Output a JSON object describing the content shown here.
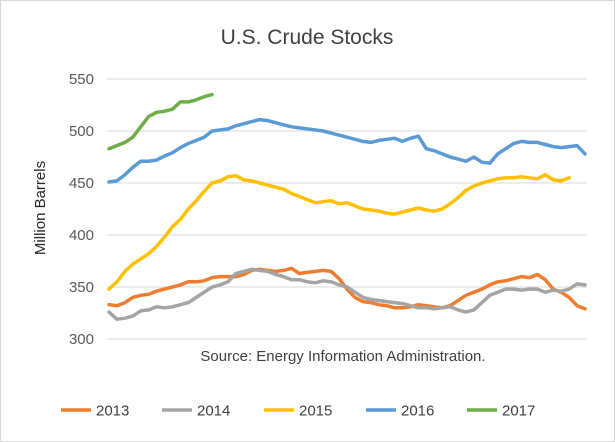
{
  "chart_data": {
    "type": "line",
    "title": "U.S. Crude Stocks",
    "ylabel": "Million Barrels",
    "xlabel": "",
    "annotation": "Source: Energy Information Administration.",
    "ylim": [
      300,
      550
    ],
    "yticks": [
      300,
      350,
      400,
      450,
      500,
      550
    ],
    "grid": true,
    "legend_position": "bottom",
    "x": "week of year",
    "series": [
      {
        "name": "2013",
        "color": "#ed7d31",
        "values": [
          333,
          332,
          335,
          340,
          342,
          343,
          346,
          348,
          350,
          352,
          355,
          355,
          356,
          359,
          360,
          360,
          360,
          362,
          366,
          367,
          366,
          365,
          366,
          368,
          363,
          364,
          365,
          366,
          365,
          358,
          348,
          340,
          336,
          335,
          333,
          332,
          330,
          330,
          331,
          333,
          332,
          331,
          330,
          332,
          337,
          342,
          345,
          348,
          352,
          355,
          356,
          358,
          360,
          359,
          362,
          357,
          348,
          345,
          340,
          332,
          329
        ]
      },
      {
        "name": "2014",
        "color": "#a5a5a5",
        "values": [
          326,
          319,
          320,
          322,
          327,
          328,
          331,
          330,
          331,
          333,
          335,
          340,
          345,
          350,
          352,
          355,
          363,
          365,
          367,
          366,
          365,
          362,
          360,
          357,
          357,
          355,
          354,
          356,
          355,
          352,
          350,
          345,
          340,
          338,
          337,
          336,
          335,
          334,
          332,
          330,
          330,
          329,
          330,
          331,
          328,
          326,
          328,
          335,
          342,
          345,
          348,
          348,
          347,
          348,
          348,
          345,
          347,
          346,
          348,
          353,
          352
        ]
      },
      {
        "name": "2015",
        "color": "#ffc000",
        "values": [
          348,
          355,
          365,
          372,
          377,
          382,
          389,
          398,
          408,
          415,
          425,
          433,
          442,
          450,
          452,
          456,
          457,
          453,
          452,
          450,
          448,
          446,
          444,
          440,
          437,
          434,
          431,
          432,
          433,
          430,
          431,
          428,
          425,
          424,
          423,
          421,
          420,
          422,
          424,
          426,
          424,
          423,
          425,
          430,
          436,
          443,
          447,
          450,
          452,
          454,
          455,
          455,
          456,
          455,
          454,
          458,
          453,
          452,
          455
        ]
      },
      {
        "name": "2016",
        "color": "#5b9bd5",
        "values": [
          451,
          452,
          458,
          465,
          471,
          471,
          472,
          476,
          479,
          484,
          488,
          491,
          494,
          500,
          501,
          502,
          505,
          507,
          509,
          511,
          510,
          508,
          506,
          504,
          503,
          502,
          501,
          500,
          498,
          496,
          494,
          492,
          490,
          489,
          491,
          492,
          493,
          490,
          493,
          495,
          483,
          481,
          478,
          475,
          473,
          471,
          475,
          470,
          469,
          478,
          483,
          488,
          490,
          489,
          489,
          487,
          485,
          484,
          485,
          486,
          478
        ]
      },
      {
        "name": "2017",
        "color": "#70ad47",
        "values": [
          483,
          486,
          489,
          494,
          504,
          514,
          518,
          519,
          521,
          528,
          528,
          530,
          533,
          535
        ]
      }
    ]
  }
}
